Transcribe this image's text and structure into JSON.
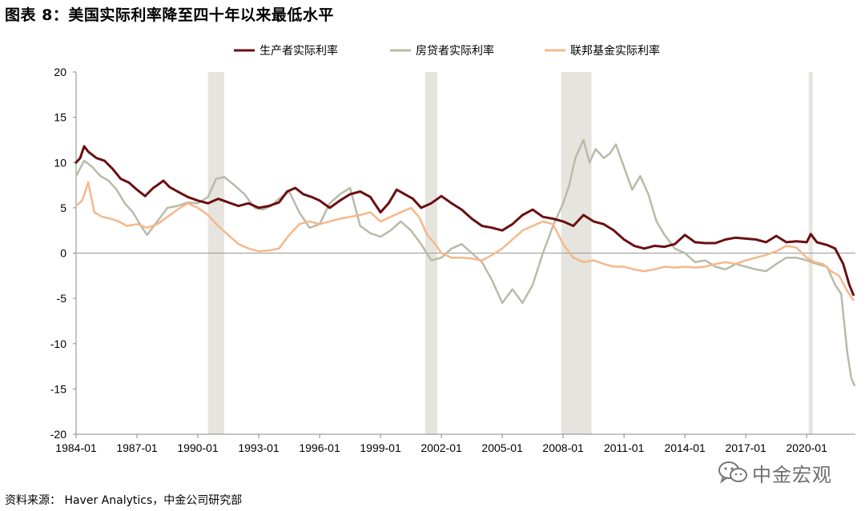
{
  "title": "图表 8：美国实际利率降至四十年以来最低水平",
  "source": "资料来源：  Haver Analytics，中金公司研究部",
  "watermark": "中金宏观",
  "chart_data": {
    "type": "line",
    "title": "图表 8：美国实际利率降至四十年以来最低水平",
    "xlabel": "",
    "ylabel": "",
    "ylim": [
      -20,
      20
    ],
    "yticks": [
      20,
      15,
      10,
      5,
      0,
      -5,
      -10,
      -15,
      -20
    ],
    "xlim": [
      1984.0,
      2022.4
    ],
    "xticks": [
      "1984-01",
      "1987-01",
      "1990-01",
      "1993-01",
      "1996-01",
      "1999-01",
      "2002-01",
      "2005-01",
      "2008-01",
      "2011-01",
      "2014-01",
      "2017-01",
      "2020-01"
    ],
    "legend_position": "top",
    "recessions": [
      [
        1990.5,
        1991.3
      ],
      [
        2001.2,
        2001.8
      ],
      [
        2007.9,
        2009.4
      ],
      [
        2020.1,
        2020.3
      ]
    ],
    "series": [
      {
        "name": "生产者实际利率",
        "color": "#6b0f12",
        "x": [
          1984.0,
          1984.2,
          1984.4,
          1984.6,
          1985.0,
          1985.4,
          1985.8,
          1986.2,
          1986.6,
          1987.0,
          1987.4,
          1987.8,
          1988.0,
          1988.3,
          1988.6,
          1989.0,
          1989.5,
          1990.0,
          1990.5,
          1991.0,
          1991.5,
          1992.0,
          1992.5,
          1993.0,
          1993.5,
          1994.0,
          1994.4,
          1994.8,
          1995.2,
          1995.6,
          1996.0,
          1996.5,
          1997.0,
          1997.5,
          1998.0,
          1998.5,
          1999.0,
          1999.4,
          1999.8,
          2000.2,
          2000.6,
          2001.0,
          2001.5,
          2002.0,
          2002.5,
          2003.0,
          2003.5,
          2004.0,
          2004.5,
          2005.0,
          2005.5,
          2006.0,
          2006.5,
          2007.0,
          2007.5,
          2008.0,
          2008.5,
          2009.0,
          2009.5,
          2010.0,
          2010.5,
          2011.0,
          2011.5,
          2012.0,
          2012.5,
          2013.0,
          2013.5,
          2014.0,
          2014.5,
          2015.0,
          2015.5,
          2016.0,
          2016.5,
          2017.0,
          2017.5,
          2018.0,
          2018.5,
          2019.0,
          2019.5,
          2020.0,
          2020.2,
          2020.5,
          2021.0,
          2021.4,
          2021.8,
          2022.1,
          2022.3
        ],
        "values": [
          10,
          10.5,
          11.8,
          11.2,
          10.5,
          10.2,
          9.3,
          8.2,
          7.8,
          7.0,
          6.3,
          7.2,
          7.5,
          8.0,
          7.3,
          6.8,
          6.2,
          5.8,
          5.5,
          6.0,
          5.6,
          5.2,
          5.5,
          5.0,
          5.2,
          5.6,
          6.8,
          7.2,
          6.5,
          6.2,
          5.8,
          5.0,
          5.8,
          6.5,
          6.8,
          6.2,
          4.5,
          5.5,
          7.0,
          6.5,
          6.0,
          5.0,
          5.5,
          6.3,
          5.5,
          4.8,
          3.8,
          3.0,
          2.8,
          2.5,
          3.2,
          4.2,
          4.8,
          4.0,
          3.8,
          3.5,
          3.0,
          4.2,
          3.5,
          3.2,
          2.5,
          1.5,
          0.8,
          0.5,
          0.8,
          0.7,
          1.0,
          2.0,
          1.2,
          1.1,
          1.1,
          1.5,
          1.7,
          1.6,
          1.5,
          1.2,
          1.9,
          1.2,
          1.3,
          1.2,
          2.1,
          1.2,
          0.9,
          0.5,
          -1.2,
          -3.5,
          -4.6
        ]
      },
      {
        "name": "房贷者实际利率",
        "color": "#b8bba8",
        "x": [
          1984.0,
          1984.4,
          1984.8,
          1985.2,
          1985.6,
          1986.0,
          1986.4,
          1986.8,
          1987.2,
          1987.5,
          1988.0,
          1988.5,
          1989.0,
          1989.5,
          1990.0,
          1990.5,
          1990.9,
          1991.3,
          1991.8,
          1992.3,
          1992.8,
          1993.2,
          1993.6,
          1994.0,
          1994.5,
          1995.0,
          1995.5,
          1996.0,
          1996.5,
          1997.0,
          1997.5,
          1998.0,
          1998.5,
          1999.0,
          1999.5,
          2000.0,
          2000.5,
          2001.0,
          2001.5,
          2002.0,
          2002.5,
          2003.0,
          2003.5,
          2004.0,
          2004.5,
          2005.0,
          2005.5,
          2006.0,
          2006.5,
          2007.0,
          2007.5,
          2008.0,
          2008.3,
          2008.6,
          2009.0,
          2009.3,
          2009.6,
          2010.0,
          2010.3,
          2010.6,
          2011.0,
          2011.4,
          2011.8,
          2012.2,
          2012.6,
          2013.0,
          2013.5,
          2014.0,
          2014.5,
          2015.0,
          2015.5,
          2016.0,
          2016.5,
          2017.0,
          2017.5,
          2018.0,
          2018.5,
          2019.0,
          2019.5,
          2020.0,
          2020.5,
          2021.0,
          2021.4,
          2021.7,
          2022.0,
          2022.2,
          2022.35
        ],
        "values": [
          8.5,
          10.2,
          9.5,
          8.5,
          8.0,
          7.0,
          5.5,
          4.5,
          3.0,
          2.0,
          3.5,
          5.0,
          5.2,
          5.6,
          5.5,
          6.2,
          8.2,
          8.4,
          7.5,
          6.5,
          5.0,
          4.8,
          5.2,
          6.0,
          6.8,
          4.5,
          2.8,
          3.2,
          5.5,
          6.5,
          7.2,
          3.0,
          2.2,
          1.8,
          2.5,
          3.5,
          2.5,
          1.0,
          -0.8,
          -0.5,
          0.5,
          1.0,
          0.0,
          -1.0,
          -3.0,
          -5.5,
          -4.0,
          -5.5,
          -3.5,
          0.0,
          3.0,
          5.5,
          7.5,
          10.5,
          12.5,
          10.0,
          11.5,
          10.5,
          11.0,
          12.0,
          9.5,
          7.0,
          8.5,
          6.5,
          3.5,
          2.0,
          0.5,
          0.0,
          -1.0,
          -0.8,
          -1.5,
          -1.8,
          -1.2,
          -1.5,
          -1.8,
          -2.0,
          -1.2,
          -0.5,
          -0.5,
          -0.8,
          -1.2,
          -1.5,
          -3.5,
          -4.5,
          -11.0,
          -13.8,
          -14.6
        ]
      },
      {
        "name": "联邦基金实际利率",
        "color": "#f5b88a",
        "x": [
          1984.0,
          1984.3,
          1984.6,
          1984.9,
          1985.3,
          1985.7,
          1986.1,
          1986.5,
          1987.0,
          1987.5,
          1988.0,
          1988.5,
          1989.0,
          1989.5,
          1990.0,
          1990.5,
          1991.0,
          1991.5,
          1992.0,
          1992.5,
          1993.0,
          1993.5,
          1994.0,
          1994.5,
          1995.0,
          1995.5,
          1996.0,
          1996.5,
          1997.0,
          1997.5,
          1998.0,
          1998.5,
          1999.0,
          1999.5,
          2000.0,
          2000.5,
          2000.9,
          2001.3,
          2001.7,
          2002.0,
          2002.5,
          2003.0,
          2003.5,
          2004.0,
          2004.5,
          2005.0,
          2005.5,
          2006.0,
          2006.5,
          2007.0,
          2007.5,
          2008.0,
          2008.5,
          2009.0,
          2009.5,
          2010.0,
          2010.5,
          2011.0,
          2011.5,
          2012.0,
          2012.5,
          2013.0,
          2013.5,
          2014.0,
          2014.5,
          2015.0,
          2015.5,
          2016.0,
          2016.5,
          2017.0,
          2017.5,
          2018.0,
          2018.5,
          2019.0,
          2019.5,
          2020.0,
          2020.4,
          2020.8,
          2021.2,
          2021.6,
          2022.0,
          2022.3
        ],
        "values": [
          5.2,
          5.8,
          7.8,
          4.5,
          4.0,
          3.8,
          3.5,
          3.0,
          3.2,
          2.8,
          3.2,
          4.0,
          4.8,
          5.5,
          5.0,
          4.2,
          3.0,
          2.0,
          1.0,
          0.5,
          0.2,
          0.3,
          0.5,
          2.0,
          3.2,
          3.5,
          3.2,
          3.5,
          3.8,
          4.0,
          4.2,
          4.5,
          3.5,
          4.0,
          4.5,
          5.0,
          4.0,
          2.0,
          1.0,
          0.0,
          -0.5,
          -0.5,
          -0.6,
          -0.8,
          -0.2,
          0.5,
          1.5,
          2.5,
          3.0,
          3.5,
          3.2,
          1.0,
          -0.5,
          -1.0,
          -0.8,
          -1.2,
          -1.5,
          -1.5,
          -1.8,
          -2.0,
          -1.8,
          -1.5,
          -1.6,
          -1.5,
          -1.6,
          -1.5,
          -1.2,
          -1.0,
          -1.2,
          -0.8,
          -0.5,
          -0.2,
          0.2,
          0.8,
          0.6,
          -0.5,
          -1.0,
          -1.2,
          -2.0,
          -2.5,
          -4.2,
          -5.2
        ]
      }
    ]
  }
}
